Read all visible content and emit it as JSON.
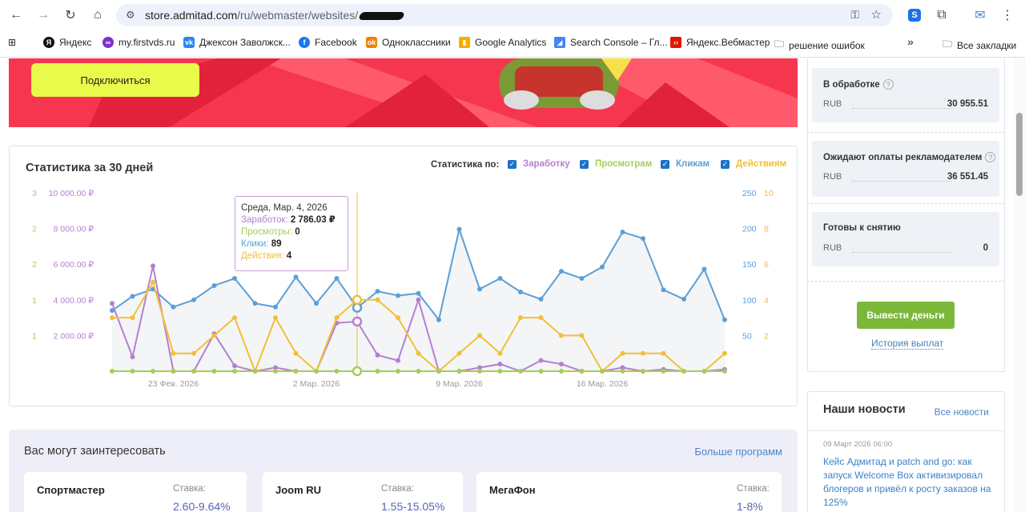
{
  "browser": {
    "url_host": "store.admitad.com",
    "url_path": "/ru/webmaster/websites/",
    "bookmarks": [
      {
        "label": "Яндекс",
        "icon": "yandex-icon",
        "color": "#111111"
      },
      {
        "label": "my.firstvds.ru",
        "icon": "firstvds-icon",
        "color": "#7b2fd0"
      },
      {
        "label": "Джексон Заволжск...",
        "icon": "vk-icon",
        "color": "#2787f5"
      },
      {
        "label": "Facebook",
        "icon": "facebook-icon",
        "color": "#1877f2"
      },
      {
        "label": "Одноклассники",
        "icon": "ok-icon",
        "color": "#ee8208"
      },
      {
        "label": "Google Analytics",
        "icon": "analytics-icon",
        "color": "#f9ab00"
      },
      {
        "label": "Search Console – Гл...",
        "icon": "search-console-icon",
        "color": "#4285f4"
      },
      {
        "label": "Яндекс.Вебмастер",
        "icon": "webmaster-icon",
        "color": "#e61400"
      },
      {
        "label": "решение ошибок",
        "icon": "folder-icon",
        "color": "#444444"
      }
    ],
    "all_bookmarks": "Все закладки"
  },
  "promo": {
    "button_label": "Подключиться"
  },
  "stats": {
    "title": "Статистика за 30 дней",
    "by_label": "Статистика по:",
    "legend": [
      {
        "label": "Заработку",
        "color": "#b77fd0"
      },
      {
        "label": "Просмотрам",
        "color": "#a8cc5a"
      },
      {
        "label": "Кликам",
        "color": "#5b9fd6"
      },
      {
        "label": "Действиям",
        "color": "#f2c035"
      }
    ],
    "tooltip": {
      "date": "Среда, Мар. 4, 2026",
      "earnings_label": "Заработок:",
      "earnings_value": "2 786.03 ₽",
      "views_label": "Просмотры:",
      "views_value": "0",
      "clicks_label": "Клики:",
      "clicks_value": "89",
      "actions_label": "Действия:",
      "actions_value": "4"
    }
  },
  "chart_data": {
    "type": "line",
    "x": [
      "20 Фев",
      "21 Фев",
      "22 Фев",
      "23 Фев",
      "24 Фев",
      "25 Фев",
      "26 Фев",
      "27 Фев",
      "28 Фев",
      "1 Мар",
      "2 Мар",
      "3 Мар",
      "4 Мар",
      "5 Мар",
      "6 Мар",
      "7 Мар",
      "8 Мар",
      "9 Мар",
      "10 Мар",
      "11 Мар",
      "12 Мар",
      "13 Мар",
      "14 Мар",
      "15 Мар",
      "16 Мар",
      "17 Мар",
      "18 Мар",
      "19 Мар",
      "20 Мар",
      "21 Мар",
      "22 Мар"
    ],
    "x_tick_labels": [
      "23 Фев. 2026",
      "2 Мар. 2026",
      "9 Мар. 2026",
      "16 Мар. 2026"
    ],
    "axes": {
      "views": {
        "ticks": [
          "1",
          "1",
          "2",
          "2",
          "3"
        ]
      },
      "earnings": {
        "ticks": [
          "2 000.00 ₽",
          "4 000.00 ₽",
          "6 000.00 ₽",
          "8 000.00 ₽",
          "10 000.00 ₽"
        ],
        "ylim": [
          0,
          10000
        ]
      },
      "clicks": {
        "ticks": [
          "50",
          "100",
          "150",
          "200",
          "250"
        ],
        "ylim": [
          0,
          250
        ]
      },
      "actions": {
        "ticks": [
          "2",
          "4",
          "6",
          "8",
          "10"
        ],
        "ylim": [
          0,
          10
        ]
      }
    },
    "series": [
      {
        "name": "Заработок",
        "color": "#b77fd0",
        "values": [
          3800,
          800,
          5900,
          0,
          0,
          2100,
          300,
          0,
          200,
          0,
          0,
          2700,
          2786,
          900,
          600,
          4000,
          0,
          0,
          200,
          400,
          0,
          600,
          400,
          0,
          0,
          200,
          0,
          100,
          0,
          0,
          100
        ]
      },
      {
        "name": "Просмотры",
        "color": "#a8cc5a",
        "values": [
          0,
          0,
          0,
          0,
          0,
          0,
          0,
          0,
          0,
          0,
          0,
          0,
          0,
          0,
          0,
          0,
          0,
          0,
          0,
          0,
          0,
          0,
          0,
          0,
          0,
          0,
          0,
          0,
          0,
          0,
          0
        ]
      },
      {
        "name": "Клики",
        "color": "#5b9fd6",
        "values": [
          85,
          105,
          115,
          90,
          100,
          120,
          130,
          95,
          90,
          132,
          95,
          130,
          89,
          112,
          106,
          109,
          72,
          199,
          115,
          130,
          111,
          101,
          140,
          130,
          146,
          195,
          186,
          114,
          101,
          143,
          72
        ]
      },
      {
        "name": "Действия",
        "color": "#f2c035",
        "values": [
          3,
          3,
          5,
          1,
          1,
          2,
          3,
          0,
          3,
          1,
          0,
          3,
          4,
          4,
          3,
          1,
          0,
          1,
          2,
          1,
          3,
          3,
          2,
          2,
          0,
          1,
          1,
          1,
          0,
          0,
          1
        ]
      }
    ]
  },
  "interest": {
    "title": "Вас могут заинтересовать",
    "more": "Больше программ",
    "programs": [
      {
        "name": "Спортмастер",
        "rate_label": "Ставка:",
        "rate": "2.60-9.64%"
      },
      {
        "name": "Joom RU",
        "rate_label": "Ставка:",
        "rate": "1.55-15.05%"
      },
      {
        "name": "МегаФон",
        "rate_label": "Ставка:",
        "rate": "1-8%"
      }
    ]
  },
  "balance": {
    "processing": {
      "title": "В обработке",
      "currency": "RUB",
      "amount": "30 955.51"
    },
    "awaiting": {
      "title": "Ожидают оплаты рекламодателем",
      "currency": "RUB",
      "amount": "36 551.45"
    },
    "ready": {
      "title": "Готовы к снятию",
      "currency": "RUB",
      "amount": "0"
    },
    "withdraw_label": "Вывести деньги",
    "history_label": "История выплат"
  },
  "news": {
    "title": "Наши новости",
    "all_label": "Все новости",
    "date": "09 Март 2026 06:00",
    "text": "Кейс Адмитад и patch and go: как запуск Welcome Box активизировал блогеров и привёл к росту заказов на 125%"
  }
}
